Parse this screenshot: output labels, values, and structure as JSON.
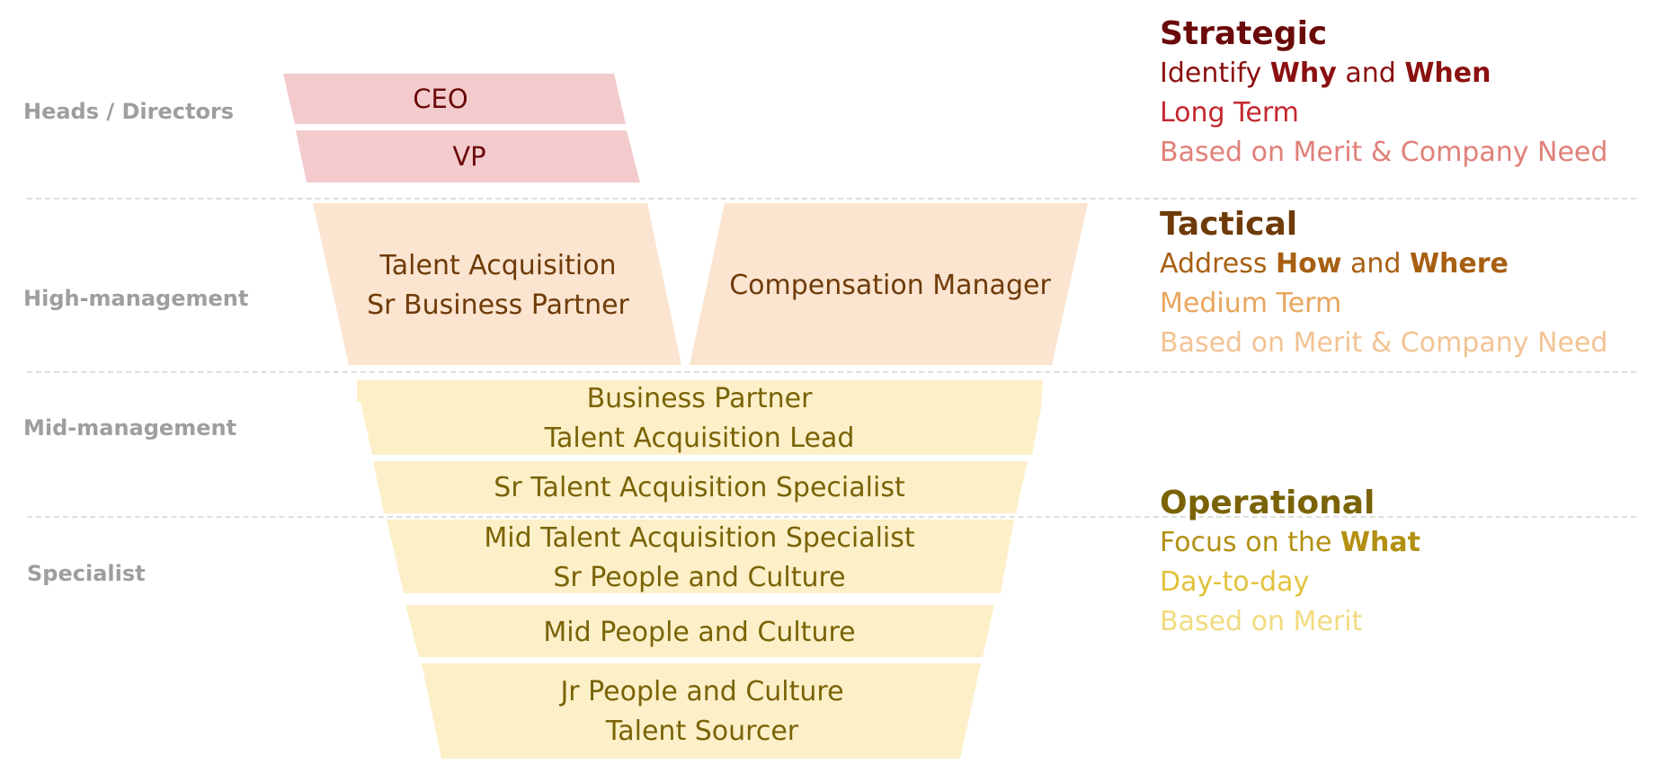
{
  "levels": {
    "heads": "Heads / Directors",
    "high": "High-management",
    "mid": "Mid-management",
    "specialist": "Specialist"
  },
  "roles": {
    "ceo": "CEO",
    "vp": "VP",
    "ta_sr_bp": [
      "Talent Acquisition",
      "Sr Business Partner"
    ],
    "comp_mgr": "Compensation Manager",
    "bp_ta_lead": [
      "Business Partner",
      "Talent Acquisition Lead"
    ],
    "sr_ta_spec": "Sr Talent Acquisition Specialist",
    "mid_ta_sr_pc": [
      "Mid Talent Acquisition Specialist",
      "Sr People and Culture"
    ],
    "mid_pc": "Mid People and Culture",
    "jr_pc_sourcer": [
      "Jr People and Culture",
      "Talent Sourcer"
    ]
  },
  "panels": {
    "strategic": {
      "title": "Strategic",
      "line1_pre": "Identify ",
      "line1_b1": "Why",
      "line1_mid": " and ",
      "line1_b2": "When",
      "line2": "Long Term",
      "line3": "Based on Merit & Company Need"
    },
    "tactical": {
      "title": "Tactical",
      "line1_pre": "Address ",
      "line1_b1": "How",
      "line1_mid": " and ",
      "line1_b2": "Where",
      "line2": "Medium Term",
      "line3": "Based on Merit & Company Need"
    },
    "operational": {
      "title": "Operational",
      "line1_pre": "Focus on the ",
      "line1_b1": "What",
      "line2": "Day-to-day",
      "line3": "Based on Merit"
    }
  },
  "colors": {
    "strategic_fill": "#f4cbcd",
    "strategic_text": "#6b0a0a",
    "tactical_fill": "#fbe5d0",
    "tactical_text": "#6e3b08",
    "operational_fill": "#fdf0c9",
    "operational_text": "#7a6306",
    "strategic_title": "#6b0a0a",
    "strategic_l1": "#8b1010",
    "strategic_l2": "#c4282f",
    "strategic_l3": "#e08079",
    "tactical_title": "#6e3b08",
    "tactical_l1": "#a85f12",
    "tactical_l2": "#e8a65e",
    "tactical_l3": "#f3c394",
    "operational_title": "#7a6306",
    "operational_l1": "#b39012",
    "operational_l2": "#e2c23c",
    "operational_l3": "#f1db7f"
  }
}
